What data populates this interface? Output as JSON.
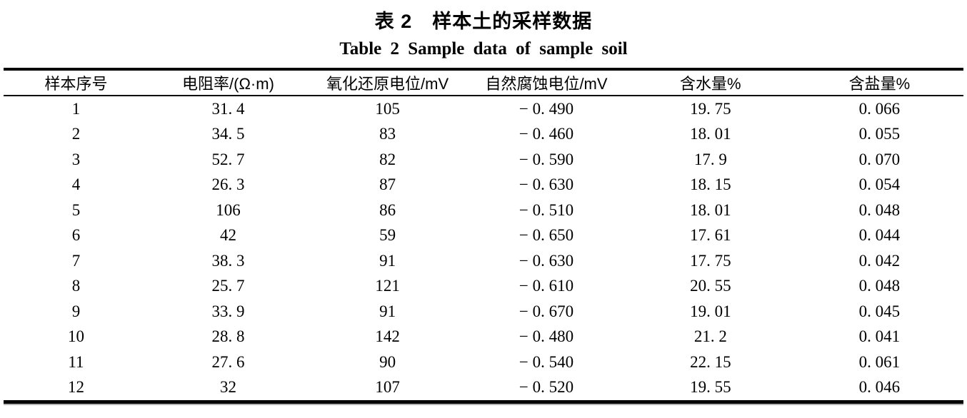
{
  "titles": {
    "zh": "表 2　样本土的采样数据",
    "en": "Table 2 Sample data of sample soil"
  },
  "table": {
    "columns": [
      "样本序号",
      "电阻率/(Ω·m)",
      "氧化还原电位/mV",
      "自然腐蚀电位/mV",
      "含水量%",
      "含盐量%"
    ],
    "rows": [
      [
        "1",
        "31. 4",
        "105",
        "− 0. 490",
        "19. 75",
        "0. 066"
      ],
      [
        "2",
        "34. 5",
        "83",
        "− 0. 460",
        "18. 01",
        "0. 055"
      ],
      [
        "3",
        "52. 7",
        "82",
        "− 0. 590",
        "17. 9",
        "0. 070"
      ],
      [
        "4",
        "26. 3",
        "87",
        "− 0. 630",
        "18. 15",
        "0. 054"
      ],
      [
        "5",
        "106",
        "86",
        "− 0. 510",
        "18. 01",
        "0. 048"
      ],
      [
        "6",
        "42",
        "59",
        "− 0. 650",
        "17. 61",
        "0. 044"
      ],
      [
        "7",
        "38. 3",
        "91",
        "− 0. 630",
        "17. 75",
        "0. 042"
      ],
      [
        "8",
        "25. 7",
        "121",
        "− 0. 610",
        "20. 55",
        "0. 048"
      ],
      [
        "9",
        "33. 9",
        "91",
        "− 0. 670",
        "19. 01",
        "0. 045"
      ],
      [
        "10",
        "28. 8",
        "142",
        "− 0. 480",
        "21. 2",
        "0. 041"
      ],
      [
        "11",
        "27. 6",
        "90",
        "− 0. 540",
        "22. 15",
        "0. 061"
      ],
      [
        "12",
        "32",
        "107",
        "− 0. 520",
        "19. 55",
        "0. 046"
      ]
    ]
  },
  "colors": {
    "text": "#000000",
    "background": "#ffffff",
    "rule": "#000000"
  }
}
